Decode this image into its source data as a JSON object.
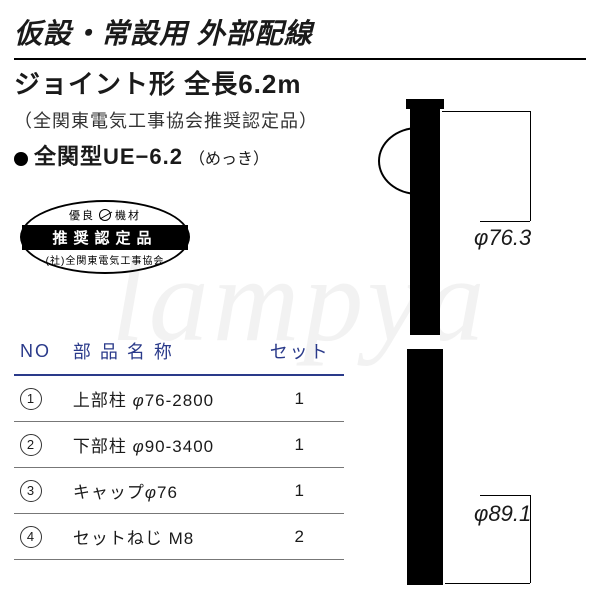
{
  "header": {
    "line1": "仮設・常設用 外部配線",
    "line1_fontsize": 28,
    "line2": "ジョイント形 全長6.2m",
    "line2_fontsize": 26,
    "subtitle": "（全関東電気工事協会推奨認定品）",
    "subtitle_fontsize": 18,
    "subtitle_color": "#333333",
    "model_label": "全関型UE−6.2",
    "model_fontsize": 22,
    "plating": "（めっき）",
    "plating_fontsize": 16
  },
  "badge": {
    "top": "優良　機材",
    "mid": "推奨認定品",
    "bot": "(社)全関東電気工事協会"
  },
  "table": {
    "header_color": "#2a3a8a",
    "th_fontsize": 18,
    "td_fontsize": 17,
    "columns": [
      "NO",
      "部 品 名 称",
      "セット"
    ],
    "rows": [
      {
        "no": "1",
        "name_prefix": "上部柱 ",
        "phi": "φ",
        "name_suffix": "76-2800",
        "set": "1"
      },
      {
        "no": "2",
        "name_prefix": "下部柱 ",
        "phi": "φ",
        "name_suffix": "90-3400",
        "set": "1"
      },
      {
        "no": "3",
        "name_prefix": "キャップ",
        "phi": "φ",
        "name_suffix": "76",
        "set": "1"
      },
      {
        "no": "4",
        "name_prefix": "セットねじ M8",
        "phi": "",
        "name_suffix": "",
        "set": "2"
      }
    ]
  },
  "diagram": {
    "dim_top_phi": "φ",
    "dim_top": "76.3",
    "dim_bot_phi": "φ",
    "dim_bot": "89.1",
    "dim_fontsize": 22,
    "pole_color": "#000000"
  },
  "watermark": "lampya",
  "colors": {
    "text": "#1a1a1a",
    "rule": "#000000",
    "table_border": "#777777",
    "background": "#ffffff"
  }
}
